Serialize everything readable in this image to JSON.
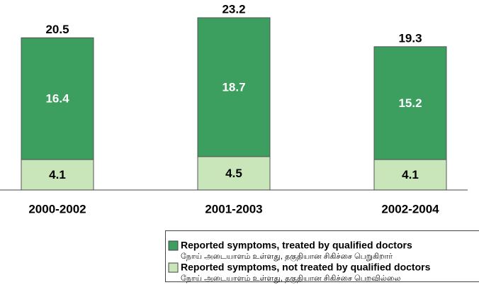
{
  "chart_data": {
    "type": "stacked-bar",
    "categories": [
      "2000-2002",
      "2001-2003",
      "2002-2004"
    ],
    "series": [
      {
        "name": "Reported symptoms, not treated by qualified doctors",
        "name_tamil": "நோய் அடையாளம் உள்ளது, தகுதியான சிகிச்சை பெறவில்லை",
        "color": "#c8e6b9",
        "values": [
          4.1,
          4.5,
          4.1
        ]
      },
      {
        "name": "Reported symptoms, treated by qualified doctors",
        "name_tamil": "நோய் அடையாளம் உள்ளது, தகுதியான சிகிச்சை பெறுகிறார்",
        "color": "#3c9e5f",
        "values": [
          16.4,
          18.7,
          15.2
        ]
      }
    ],
    "totals": [
      20.5,
      23.2,
      19.3
    ]
  }
}
